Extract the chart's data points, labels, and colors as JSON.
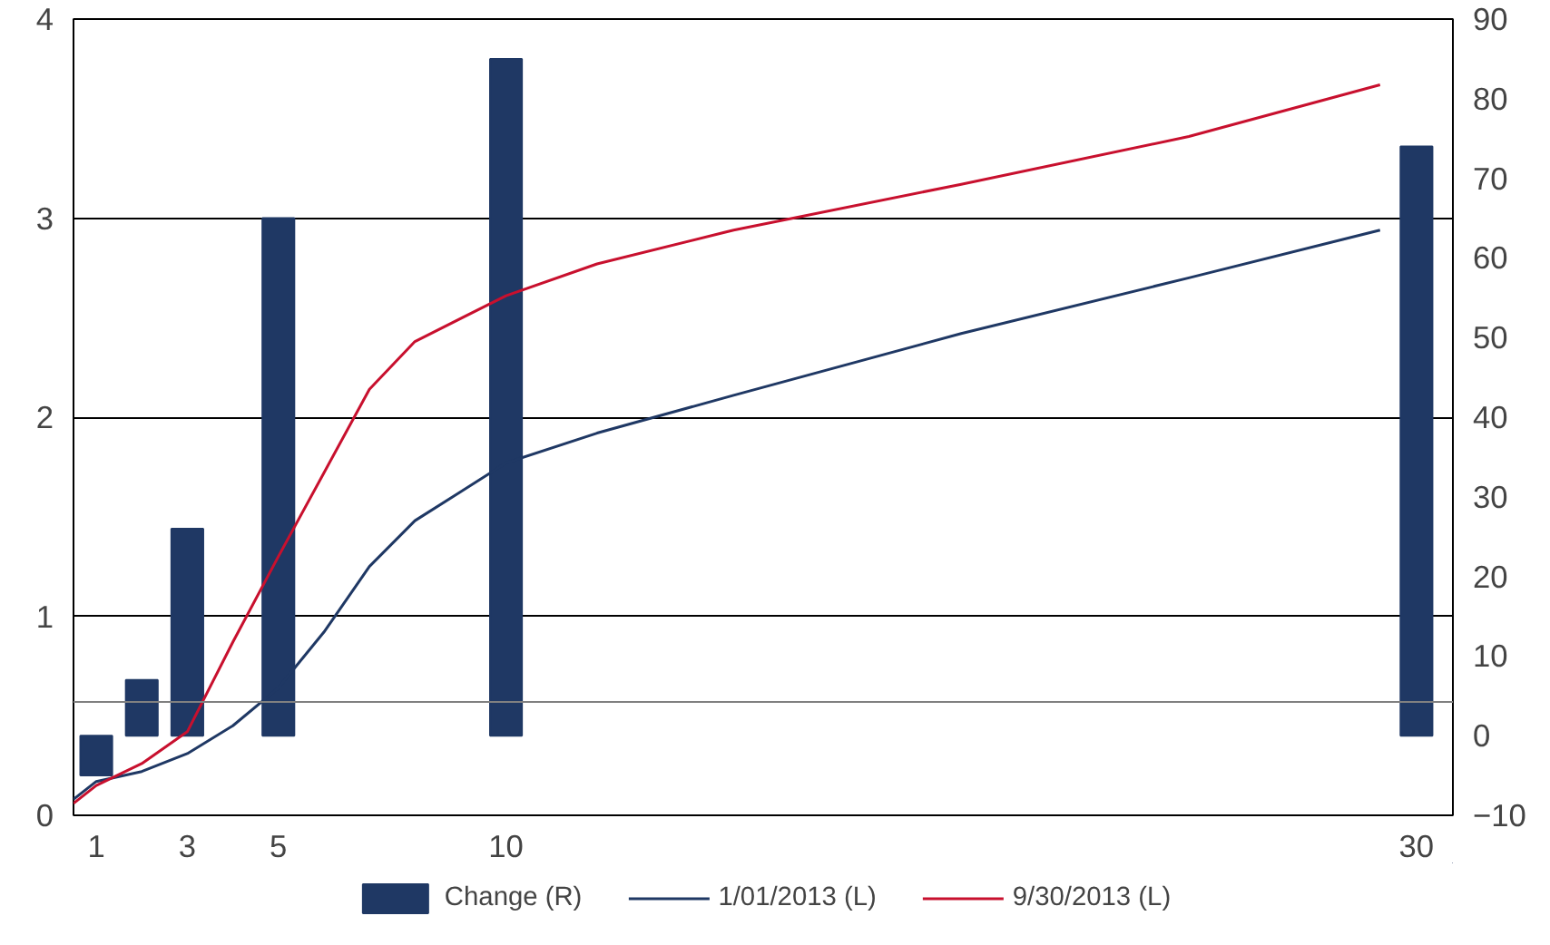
{
  "chart_data": {
    "type": "line",
    "x": [
      0.5,
      1,
      2,
      3,
      4,
      5,
      6,
      7,
      8,
      10,
      12,
      15,
      20,
      25,
      29.2
    ],
    "series": [
      {
        "name": "Change (R)",
        "type": "bar",
        "axis": "y2",
        "color": "#1f3864",
        "x": [
          1,
          2,
          3,
          5,
          10,
          30
        ],
        "values": [
          -5,
          7,
          26,
          65,
          85,
          74
        ]
      },
      {
        "name": "1/01/2013 (L)",
        "color": "#1f3864",
        "values": [
          0.08,
          0.17,
          0.22,
          0.31,
          0.45,
          0.64,
          0.92,
          1.25,
          1.48,
          1.77,
          1.92,
          2.11,
          2.42,
          2.7,
          2.94
        ]
      },
      {
        "name": "9/30/2013 (L)",
        "color": "#c8102e",
        "values": [
          0.06,
          0.15,
          0.26,
          0.42,
          0.87,
          1.3,
          1.72,
          2.14,
          2.38,
          2.61,
          2.77,
          2.94,
          3.17,
          3.41,
          3.67
        ]
      }
    ],
    "xlim": [
      0.5,
      30.8
    ],
    "xticks": [
      1,
      3,
      5,
      10,
      30
    ],
    "ylim": [
      0,
      4
    ],
    "yticks": [
      0,
      1,
      2,
      3,
      4
    ],
    "y2lim": [
      -10,
      90
    ],
    "y2ticks": [
      -10,
      0,
      10,
      20,
      30,
      40,
      50,
      60,
      70,
      80,
      90
    ],
    "ref_lines": [
      {
        "axis": "y",
        "value": 0.57,
        "color": "#808080"
      }
    ],
    "grid": "y",
    "legend": "bottom",
    "line_style": "solid",
    "marker": "none"
  }
}
